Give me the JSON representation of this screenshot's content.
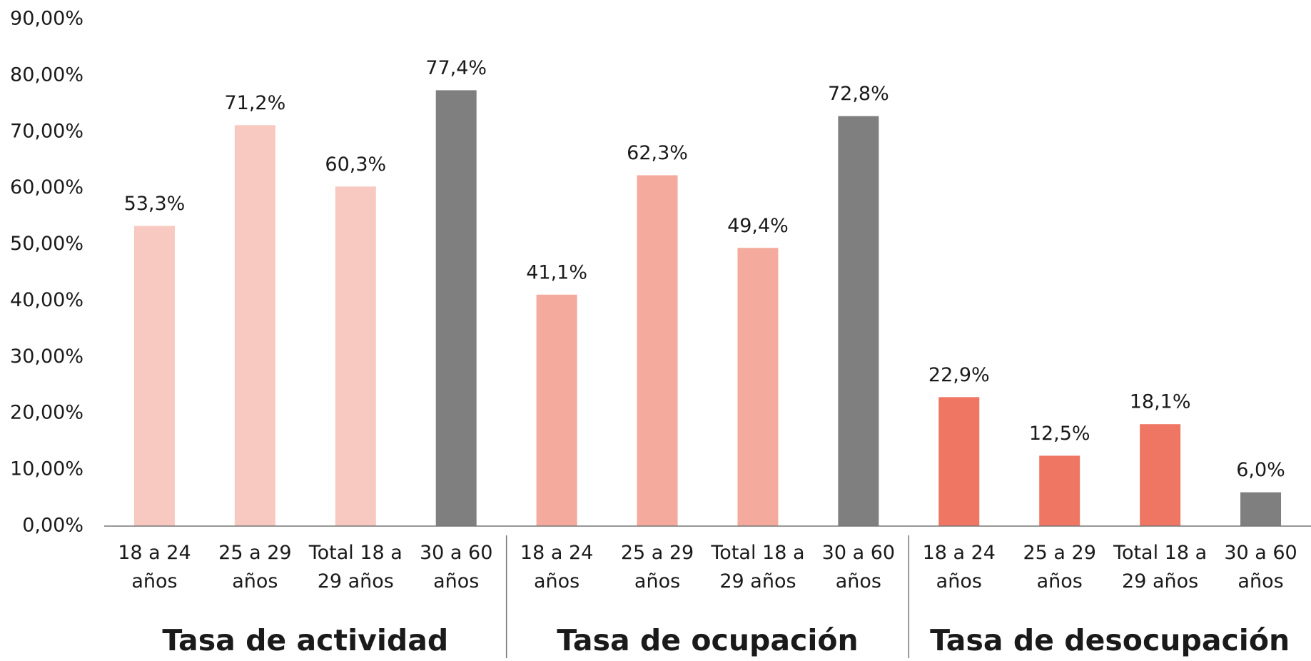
{
  "chart_data": {
    "type": "bar",
    "ylim": [
      0,
      90
    ],
    "yticks": [
      {
        "value": 0,
        "label": "0,00%"
      },
      {
        "value": 10,
        "label": "10,00%"
      },
      {
        "value": 20,
        "label": "20,00%"
      },
      {
        "value": 30,
        "label": "30,00%"
      },
      {
        "value": 40,
        "label": "40,00%"
      },
      {
        "value": 50,
        "label": "50,00%"
      },
      {
        "value": 60,
        "label": "60,00%"
      },
      {
        "value": 70,
        "label": "70,00%"
      },
      {
        "value": 80,
        "label": "80,00%"
      },
      {
        "value": 90,
        "label": "90,00%"
      }
    ],
    "groups": [
      {
        "name": "Tasa de actividad",
        "categories": [
          "18 a 24 años",
          "25 a 29 años",
          "Total 18 a 29 años",
          "30 a 60 años"
        ],
        "values": [
          53.3,
          71.2,
          60.3,
          77.4
        ],
        "value_labels": [
          "53,3%",
          "71,2%",
          "60,3%",
          "77,4%"
        ],
        "colors": [
          "#f8c9c0",
          "#f8c9c0",
          "#f8c9c0",
          "#7f7f7f"
        ]
      },
      {
        "name": "Tasa de ocupación",
        "categories": [
          "18 a 24 años",
          "25 a 29 años",
          "Total 18 a 29 años",
          "30 a 60 años"
        ],
        "values": [
          41.1,
          62.3,
          49.4,
          72.8
        ],
        "value_labels": [
          "41,1%",
          "62,3%",
          "49,4%",
          "72,8%"
        ],
        "colors": [
          "#f4aa9c",
          "#f4aa9c",
          "#f4aa9c",
          "#7f7f7f"
        ]
      },
      {
        "name": "Tasa de desocupación",
        "categories": [
          "18 a 24 años",
          "25 a 29 años",
          "Total 18 a 29 años",
          "30 a 60 años"
        ],
        "values": [
          22.9,
          12.5,
          18.1,
          6.0
        ],
        "value_labels": [
          "22,9%",
          "12,5%",
          "18,1%",
          "6,0%"
        ],
        "colors": [
          "#ef7663",
          "#ef7663",
          "#ef7663",
          "#7f7f7f"
        ]
      }
    ]
  }
}
